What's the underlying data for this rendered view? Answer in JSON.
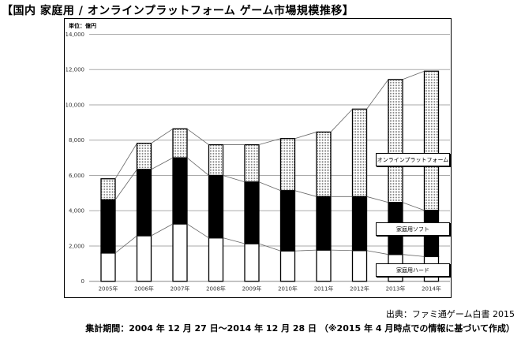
{
  "chart_data": {
    "type": "bar",
    "stacked": true,
    "title": "【国内 家庭用 / オンラインプラットフォーム ゲーム市場規模推移】",
    "unit_label": "単位：億円",
    "categories": [
      "2005年",
      "2006年",
      "2007年",
      "2008年",
      "2009年",
      "2010年",
      "2011年",
      "2012年",
      "2013年",
      "2014年"
    ],
    "series": [
      {
        "name": "家庭用ハード",
        "fill": "white",
        "values": [
          1600,
          2580,
          3250,
          2460,
          2130,
          1720,
          1770,
          1740,
          1520,
          1400
        ]
      },
      {
        "name": "家庭用ソフト",
        "fill": "black",
        "values": [
          3020,
          3760,
          3750,
          3540,
          3500,
          3420,
          3030,
          3060,
          2950,
          2620
        ]
      },
      {
        "name": "オンラインプラットフォーム",
        "fill": "dotted",
        "values": [
          1190,
          1480,
          1640,
          1740,
          2110,
          2950,
          3660,
          4960,
          6970,
          7890
        ]
      }
    ],
    "ylim": [
      0,
      14000
    ],
    "yticks": [
      "0",
      "2,000",
      "4,000",
      "6,000",
      "8,000",
      "10,000",
      "12,000",
      "14,000"
    ],
    "grid": true,
    "legend": "right, inline labels"
  },
  "footer": {
    "source": "出典：ファミ通ゲーム白書 2015",
    "period": "集計期間：2004 年 12 月 27 日～2014 年 12 月 28 日 （※2015 年 4 月時点での情報に基づいて作成）"
  }
}
